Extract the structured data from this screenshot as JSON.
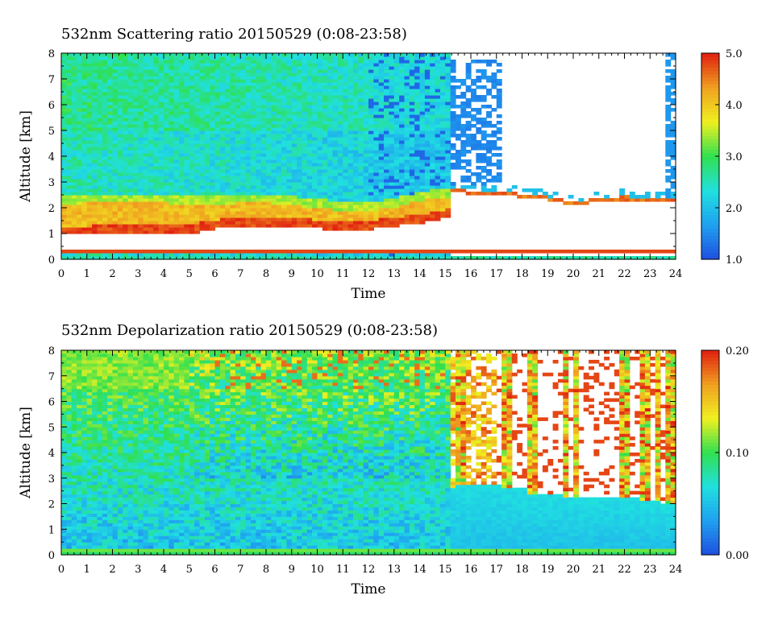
{
  "chart_data": [
    {
      "type": "heatmap",
      "title": "532nm Scattering ratio  20150529 (0:08-23:58)",
      "xlabel": "Time",
      "ylabel": "Altitude [km]",
      "xlim": [
        0,
        24
      ],
      "ylim": [
        0,
        8
      ],
      "x_ticks": [
        "0",
        "1",
        "2",
        "3",
        "4",
        "5",
        "6",
        "7",
        "8",
        "9",
        "10",
        "11",
        "12",
        "13",
        "14",
        "15",
        "16",
        "17",
        "18",
        "19",
        "20",
        "21",
        "22",
        "23",
        "24"
      ],
      "y_ticks": [
        "0",
        "1",
        "2",
        "3",
        "4",
        "5",
        "6",
        "7",
        "8"
      ],
      "colorbar": {
        "range": [
          1.0,
          5.0
        ],
        "tick_labels": [
          "1.0",
          "2.0",
          "3.0",
          "4.0",
          "5.0"
        ],
        "tick_values": [
          1.0,
          2.0,
          3.0,
          4.0,
          5.0
        ],
        "colors": [
          "#1f4fe0",
          "#1fa0f0",
          "#20e0e0",
          "#30e050",
          "#f0f020",
          "#f0a020",
          "#e02010"
        ]
      },
      "features": {
        "aerosol_layer_top_km": [
          2.3,
          2.4,
          2.4,
          2.4,
          2.4,
          2.3,
          2.3,
          2.4,
          2.4,
          2.3,
          2.2,
          2.1,
          2.1,
          2.2,
          2.5,
          2.6
        ],
        "aerosol_layer_bottom_km": [
          0.95,
          0.95,
          1.0,
          1.0,
          1.0,
          1.0,
          1.2,
          1.3,
          1.3,
          1.3,
          1.2,
          1.1,
          1.15,
          1.3,
          1.4,
          1.6
        ],
        "cloud_base_hours": [
          15.4,
          16,
          17,
          18,
          19,
          20,
          21,
          22,
          23,
          24
        ],
        "cloud_base_km": [
          2.7,
          2.6,
          2.6,
          2.5,
          2.4,
          2.2,
          2.3,
          2.4,
          2.3,
          2.3
        ],
        "clear_region_start_hour": 15.3
      }
    },
    {
      "type": "heatmap",
      "title": "532nm Depolarization ratio  20150529 (0:08-23:58)",
      "xlabel": "Time",
      "ylabel": "Altitude [km]",
      "xlim": [
        0,
        24
      ],
      "ylim": [
        0,
        8
      ],
      "x_ticks": [
        "0",
        "1",
        "2",
        "3",
        "4",
        "5",
        "6",
        "7",
        "8",
        "9",
        "10",
        "11",
        "12",
        "13",
        "14",
        "15",
        "16",
        "17",
        "18",
        "19",
        "20",
        "21",
        "22",
        "23",
        "24"
      ],
      "y_ticks": [
        "0",
        "1",
        "2",
        "3",
        "4",
        "5",
        "6",
        "7",
        "8"
      ],
      "colorbar": {
        "range": [
          0.0,
          0.2
        ],
        "tick_labels": [
          "0.00",
          "0.10",
          "0.20"
        ],
        "tick_values": [
          0.0,
          0.1,
          0.2
        ],
        "colors": [
          "#1f4fe0",
          "#1fa0f0",
          "#20e0e0",
          "#30e050",
          "#f0f020",
          "#f0a020",
          "#e02010"
        ]
      },
      "features": {
        "columns_start_hours": [
          15.4,
          17.2,
          18.2,
          19.6,
          21.6,
          22.6,
          23.5
        ],
        "column_base_km": [
          2.8,
          2.6,
          2.4,
          2.3,
          2.2,
          2.1,
          2.0
        ]
      }
    }
  ]
}
